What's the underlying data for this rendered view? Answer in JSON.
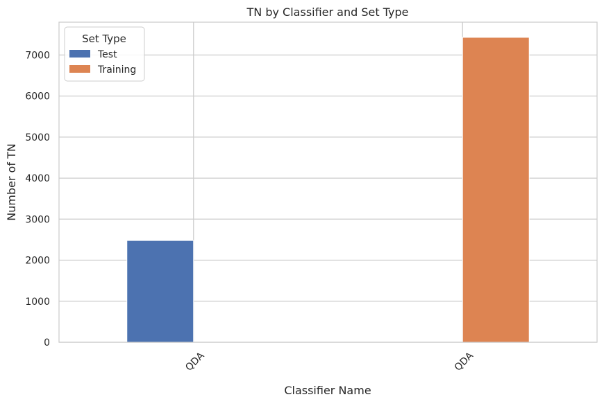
{
  "chart_data": {
    "type": "bar",
    "title": "TN by Classifier and Set Type",
    "xlabel": "Classifier Name",
    "ylabel": "Number of TN",
    "categories": [
      "QDA",
      "QDA"
    ],
    "series": [
      {
        "name": "Test",
        "color": "#4c72b0",
        "values": [
          2480,
          0
        ]
      },
      {
        "name": "Training",
        "color": "#dd8452",
        "values": [
          0,
          7430
        ]
      }
    ],
    "ylim": [
      0,
      7800
    ],
    "yticks": [
      0,
      1000,
      2000,
      3000,
      4000,
      5000,
      6000,
      7000
    ],
    "grid": true,
    "legend": {
      "title": "Set Type",
      "placement": "top-left"
    }
  }
}
